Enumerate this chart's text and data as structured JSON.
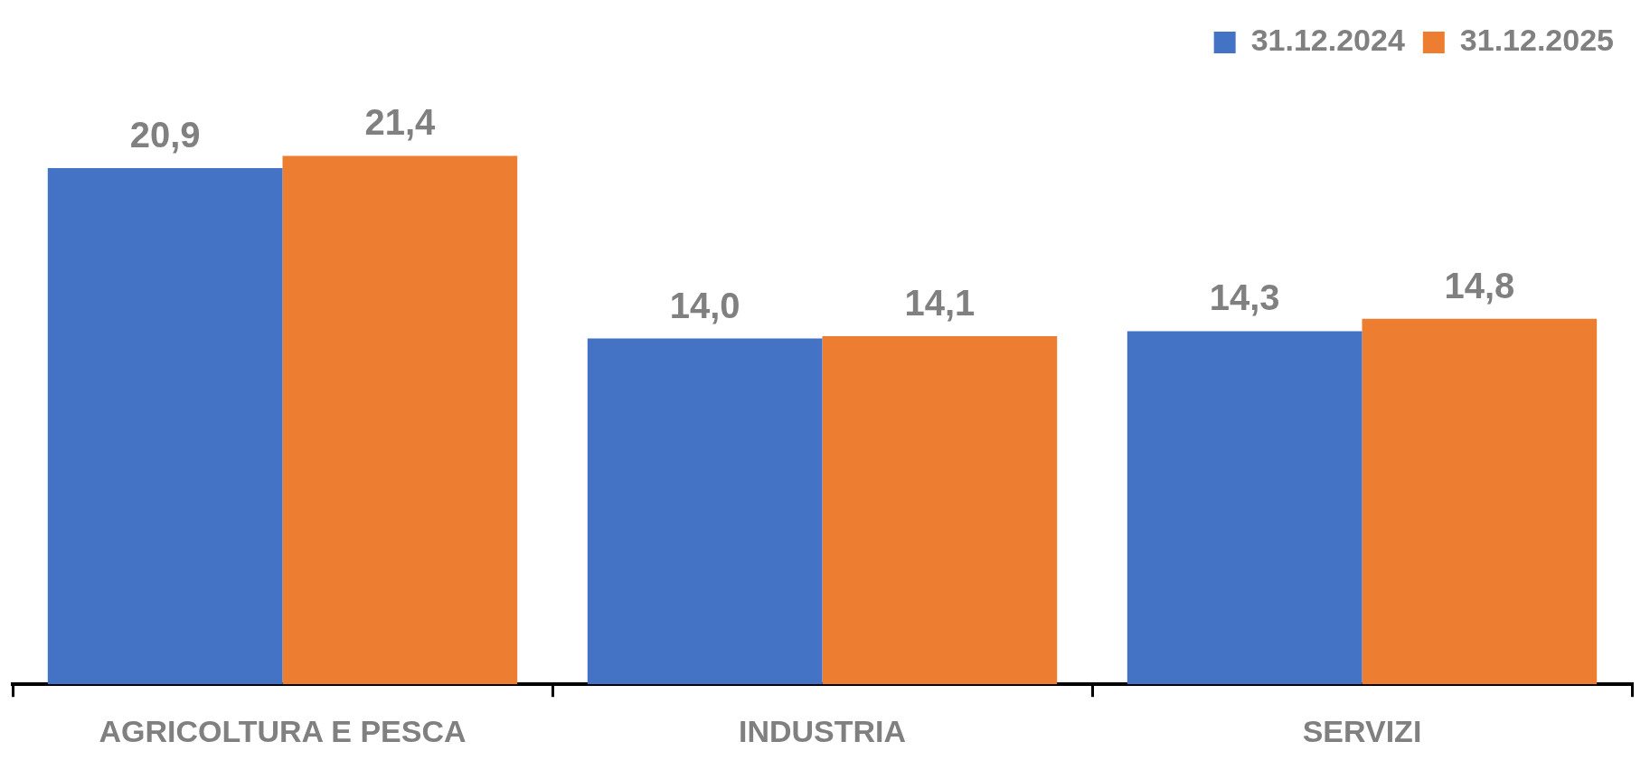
{
  "chart_data": {
    "type": "bar",
    "categories": [
      "AGRICOLTURA E PESCA",
      "INDUSTRIA",
      "SERVIZI"
    ],
    "series": [
      {
        "name": "31.12.2024",
        "color": "#4472c4",
        "values": [
          20.9,
          14.0,
          14.3
        ],
        "value_labels": [
          "20,9",
          "14,0",
          "14,3"
        ]
      },
      {
        "name": "31.12.2025",
        "color": "#ed7d31",
        "values": [
          21.4,
          14.1,
          14.8
        ],
        "value_labels": [
          "21,4",
          "14,1",
          "14,8"
        ]
      }
    ],
    "legend": "top right",
    "grid": false
  }
}
